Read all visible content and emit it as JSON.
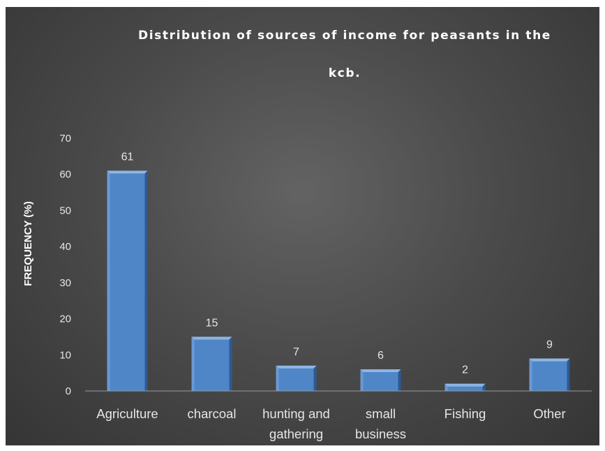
{
  "chart_data": {
    "type": "bar",
    "title_lines": [
      "Distribution of sources of income for peasants in the",
      "kcb."
    ],
    "ylabel": "FREQUENCY (%)",
    "xlabel": "",
    "ylim": [
      0,
      70
    ],
    "yticks": [
      0,
      10,
      20,
      30,
      40,
      50,
      60,
      70
    ],
    "categories": [
      [
        "Agriculture"
      ],
      [
        "charcoal"
      ],
      [
        "hunting and",
        "gathering"
      ],
      [
        "small",
        "business"
      ],
      [
        "Fishing"
      ],
      [
        "Other"
      ]
    ],
    "values": [
      61,
      15,
      7,
      6,
      2,
      9
    ],
    "data_labels": [
      "61",
      "15",
      "7",
      "6",
      "2",
      "9"
    ],
    "grid": false,
    "legend": "none",
    "colors": {
      "bar_front": "#4f86c7",
      "bar_top": "#8fb5e3",
      "bar_side": "#2d5a93",
      "background": "#4a4a4a",
      "text": "#e6e6e6",
      "axis": "#9a9a9a"
    }
  }
}
